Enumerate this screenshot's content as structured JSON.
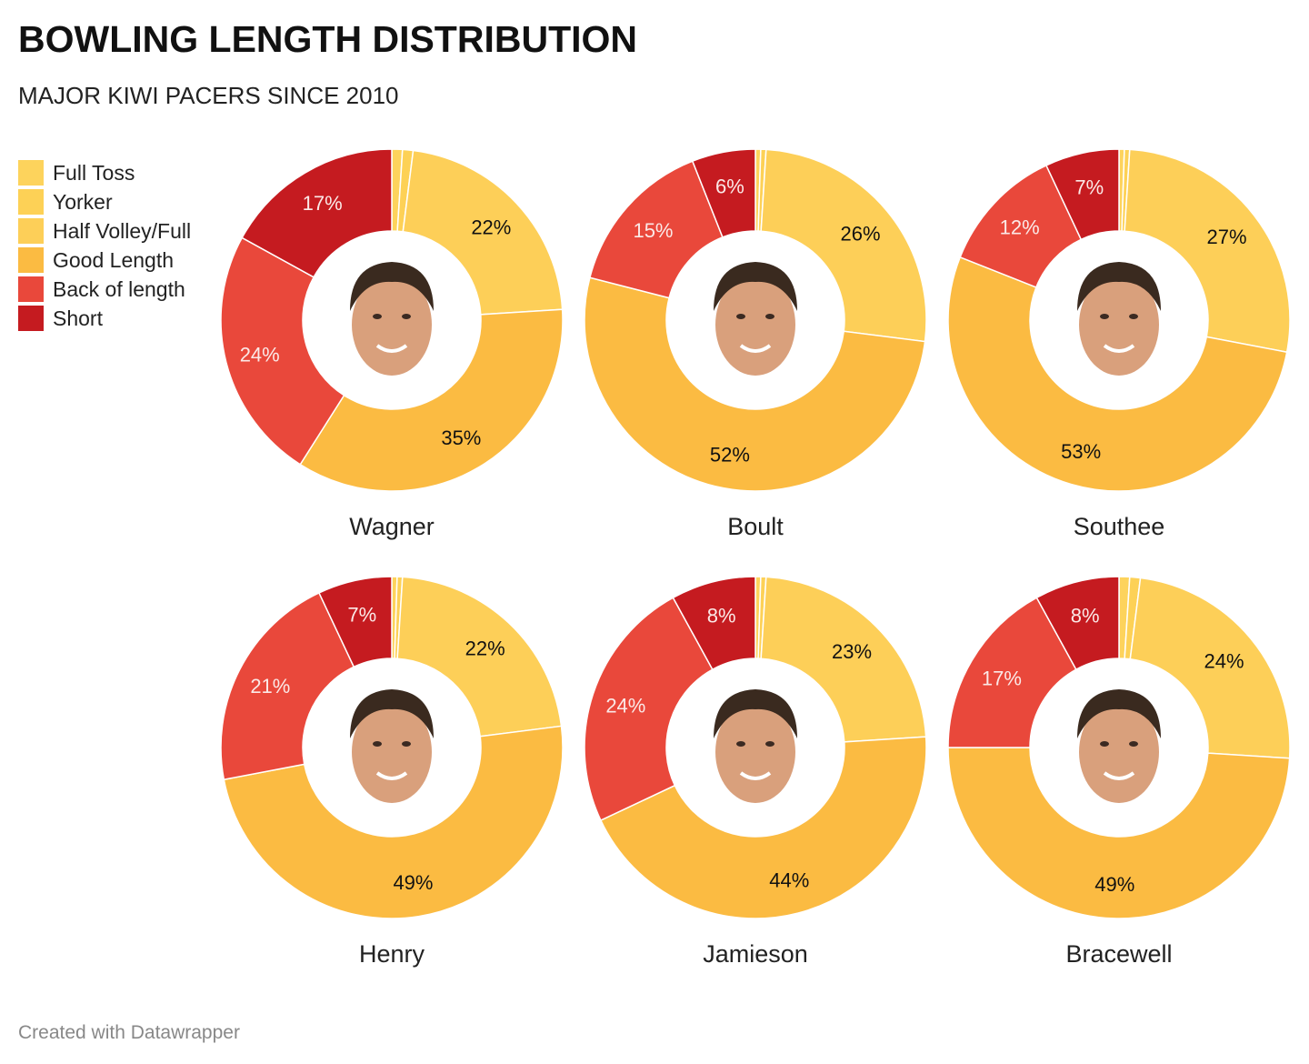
{
  "header": {
    "title": "BOWLING LENGTH DISTRIBUTION",
    "subtitle": "MAJOR KIWI PACERS SINCE 2010"
  },
  "footer": {
    "credit": "Created with Datawrapper"
  },
  "chart_data": {
    "type": "pie",
    "variant": "donut-small-multiples",
    "title": "BOWLING LENGTH DISTRIBUTION",
    "subtitle": "MAJOR KIWI PACERS SINCE 2010",
    "legend_position": "top-left",
    "categories": [
      "Full Toss",
      "Yorker",
      "Half Volley/Full",
      "Good Length",
      "Back of length",
      "Short"
    ],
    "colors": [
      "#fdd35c",
      "#fdd156",
      "#fdcf58",
      "#fbbb42",
      "#e9483b",
      "#c51b20"
    ],
    "label_colors": [
      "#111111",
      "#111111",
      "#111111",
      "#111111",
      "#fbe9e7",
      "#fbe9e7"
    ],
    "series": [
      {
        "name": "Wagner",
        "values": [
          1,
          1,
          22,
          35,
          24,
          17
        ],
        "labels": [
          "",
          "",
          "22%",
          "35%",
          "24%",
          "17%"
        ]
      },
      {
        "name": "Boult",
        "values": [
          0.5,
          0.5,
          26,
          52,
          15,
          6
        ],
        "labels": [
          "",
          "",
          "26%",
          "52%",
          "15%",
          "6%"
        ]
      },
      {
        "name": "Southee",
        "values": [
          0.5,
          0.5,
          27,
          53,
          12,
          7
        ],
        "labels": [
          "",
          "",
          "27%",
          "53%",
          "12%",
          "7%"
        ]
      },
      {
        "name": "Henry",
        "values": [
          0.5,
          0.5,
          22,
          49,
          21,
          7
        ],
        "labels": [
          "",
          "",
          "22%",
          "49%",
          "21%",
          "7%"
        ]
      },
      {
        "name": "Jamieson",
        "values": [
          0.5,
          0.5,
          23,
          44,
          24,
          8
        ],
        "labels": [
          "",
          "",
          "23%",
          "44%",
          "24%",
          "8%"
        ]
      },
      {
        "name": "Bracewell",
        "values": [
          1,
          1,
          24,
          49,
          17,
          8
        ],
        "labels": [
          "",
          "",
          "24%",
          "49%",
          "17%",
          "8%"
        ]
      }
    ]
  }
}
